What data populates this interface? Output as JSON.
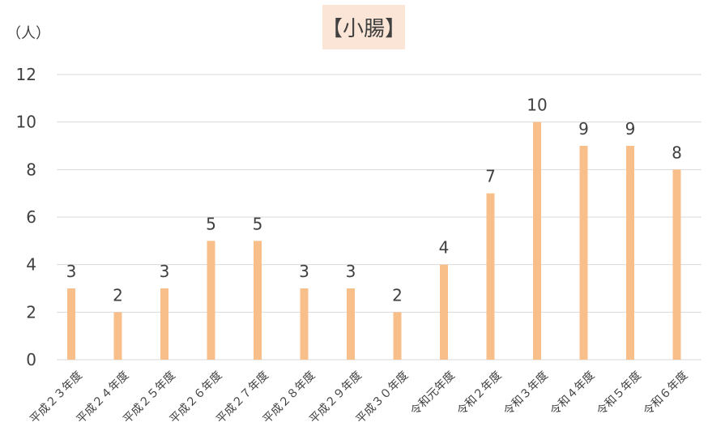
{
  "chart_data": {
    "type": "bar",
    "title": "【小腸】",
    "ylabel": "（人）",
    "xlabel": "",
    "categories": [
      "平成２３年度",
      "平成２４年度",
      "平成２５年度",
      "平成２６年度",
      "平成２７年度",
      "平成２８年度",
      "平成２９年度",
      "平成３０年度",
      "令和元年度",
      "令和２年度",
      "令和３年度",
      "令和４年度",
      "令和５年度",
      "令和６年度"
    ],
    "values": [
      3,
      2,
      3,
      5,
      5,
      3,
      3,
      2,
      4,
      7,
      10,
      9,
      9,
      8
    ],
    "ylim": [
      0,
      12
    ],
    "yticks": [
      0,
      2,
      4,
      6,
      8,
      10,
      12
    ],
    "grid": true,
    "data_labels": true,
    "bar_color": "#f8bf8b",
    "grid_color": "#d9d9d9",
    "title_bg": "#fbe5d6"
  }
}
